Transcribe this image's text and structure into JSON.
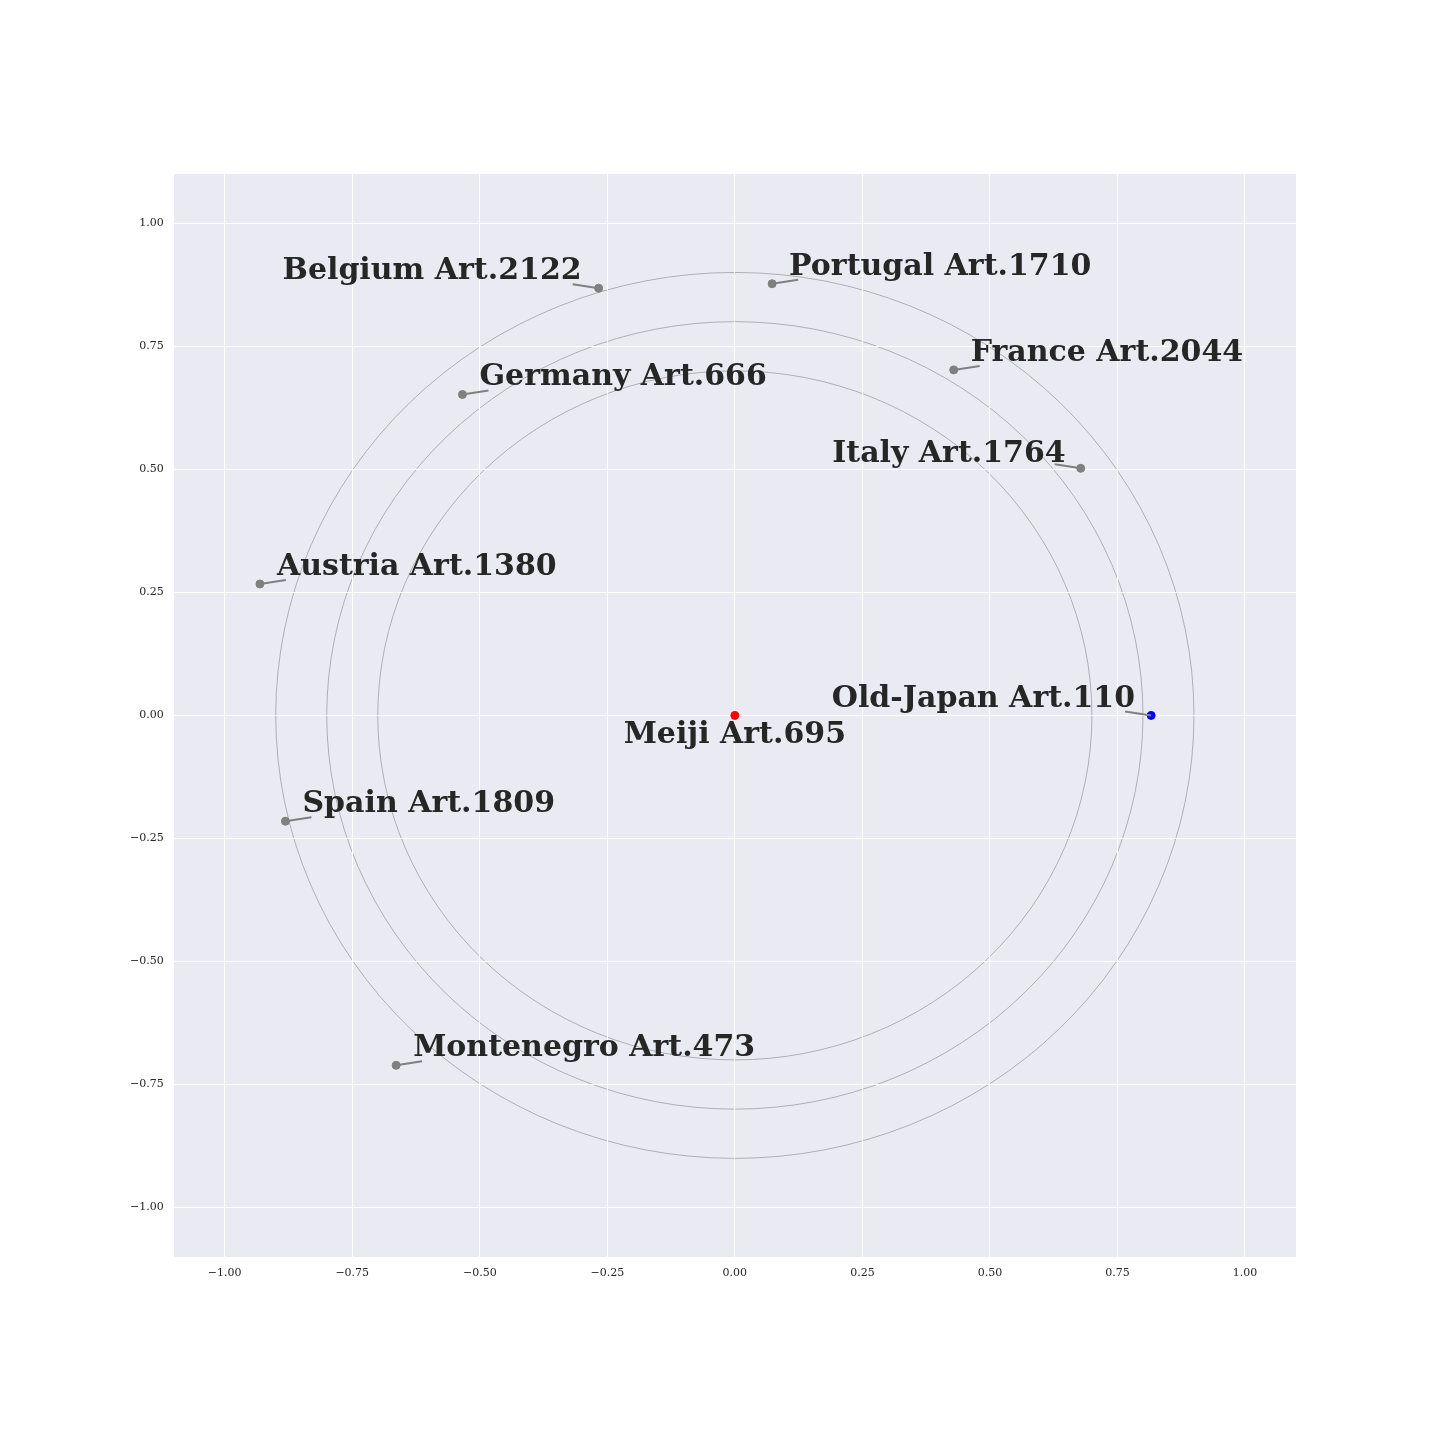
{
  "chart_data": {
    "type": "scatter",
    "xlim": [
      -1.1,
      1.1
    ],
    "ylim": [
      -1.1,
      1.1
    ],
    "xticks": [
      {
        "value": -1,
        "label": "−1.00"
      },
      {
        "value": -0.75,
        "label": "−0.75"
      },
      {
        "value": -0.5,
        "label": "−0.50"
      },
      {
        "value": -0.25,
        "label": "−0.25"
      },
      {
        "value": 0,
        "label": "0.00"
      },
      {
        "value": 0.25,
        "label": "0.25"
      },
      {
        "value": 0.5,
        "label": "0.50"
      },
      {
        "value": 0.75,
        "label": "0.75"
      },
      {
        "value": 1,
        "label": "1.00"
      }
    ],
    "yticks": [
      {
        "value": -1,
        "label": "−1.00"
      },
      {
        "value": -0.75,
        "label": "−0.75"
      },
      {
        "value": -0.5,
        "label": "−0.50"
      },
      {
        "value": -0.25,
        "label": "−0.25"
      },
      {
        "value": 0,
        "label": "0.00"
      },
      {
        "value": 0.25,
        "label": "0.25"
      },
      {
        "value": 0.5,
        "label": "0.50"
      },
      {
        "value": 0.75,
        "label": "0.75"
      },
      {
        "value": 1,
        "label": "1.00"
      }
    ],
    "grid": true,
    "legend": false,
    "marker": "circle",
    "series": [
      {
        "x": [
          0,
          0.816,
          0.073,
          -0.267,
          0.429,
          -0.534,
          0.678,
          -0.931,
          -0.881,
          -0.664
        ],
        "values": [
          0,
          0,
          0.877,
          0.868,
          0.702,
          0.652,
          0.502,
          0.267,
          -0.215,
          -0.711
        ],
        "colors": [
          "#ff0000",
          "#0000ff",
          "#808080",
          "#808080",
          "#808080",
          "#808080",
          "#808080",
          "#808080",
          "#808080",
          "#808080"
        ]
      }
    ],
    "annotations": [
      {
        "text": "Meiji Art.695",
        "x": 0,
        "y": 0
      },
      {
        "text": "Old-Japan Art.110",
        "x": 0.816,
        "y": 0
      },
      {
        "text": "Portugal Art.1710",
        "x": 0.073,
        "y": 0.877
      },
      {
        "text": "Belgium Art.2122",
        "x": -0.267,
        "y": 0.868
      },
      {
        "text": "France Art.2044",
        "x": 0.429,
        "y": 0.702
      },
      {
        "text": "Germany Art.666",
        "x": -0.534,
        "y": 0.652
      },
      {
        "text": "Italy Art.1764",
        "x": 0.678,
        "y": 0.502
      },
      {
        "text": "Austria Art.1380",
        "x": -0.931,
        "y": 0.267
      },
      {
        "text": "Spain Art.1809",
        "x": -0.881,
        "y": -0.215
      },
      {
        "text": "Montenegro Art.473",
        "x": -0.664,
        "y": -0.711
      }
    ]
  }
}
